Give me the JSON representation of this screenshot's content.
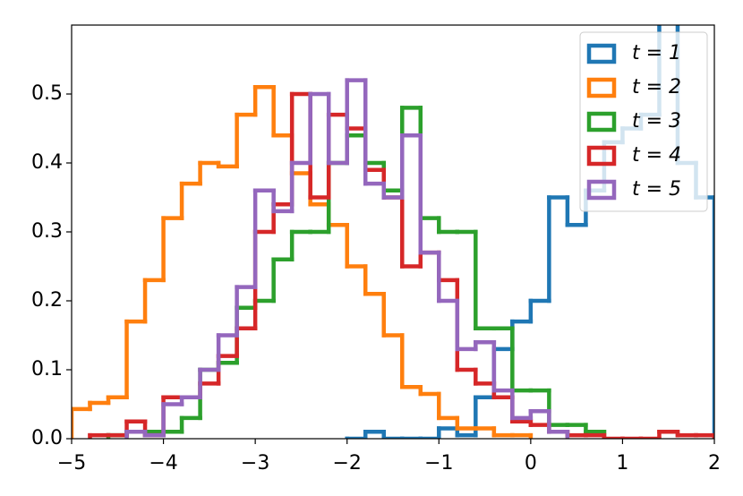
{
  "chart_data": {
    "type": "histogram",
    "xlim": [
      -5,
      2
    ],
    "ylim": [
      0,
      0.6
    ],
    "xticks": [
      {
        "value": -5,
        "label": "−5"
      },
      {
        "value": -4,
        "label": "−4"
      },
      {
        "value": -3,
        "label": "−3"
      },
      {
        "value": -2,
        "label": "−2"
      },
      {
        "value": -1,
        "label": "−1"
      },
      0,
      1,
      2
    ],
    "yticks": [
      {
        "value": 0,
        "label": "0.0"
      },
      0.1,
      0.2,
      0.3,
      0.4,
      0.5
    ],
    "legend": "upper right",
    "series": [
      {
        "name": "t = 1",
        "color": "#1f77b4",
        "bins": [
          -2,
          -1.8,
          -1.6,
          -1.4,
          -1.2,
          -1.0,
          -0.8,
          -0.6,
          -0.4,
          -0.2,
          0,
          0.2,
          0.4,
          0.6,
          0.8,
          1.0,
          1.2,
          1.4,
          1.6,
          1.8,
          2.0
        ],
        "values": [
          0,
          0.01,
          0,
          0,
          0,
          0.015,
          0.005,
          0.06,
          0.13,
          0.17,
          0.2,
          0.35,
          0.31,
          0.36,
          0.43,
          0.45,
          0.47,
          0.62,
          0.4,
          0.35
        ]
      },
      {
        "name": "t = 2",
        "color": "#ff7f0e",
        "bins": [
          -5,
          -4.8,
          -4.6,
          -4.4,
          -4.2,
          -4.0,
          -3.8,
          -3.6,
          -3.4,
          -3.2,
          -3.0,
          -2.8,
          -2.6,
          -2.4,
          -2.2,
          -2.0,
          -1.8,
          -1.6,
          -1.4,
          -1.2,
          -1.0,
          -0.8,
          -0.6,
          -0.4,
          -0.2,
          0
        ],
        "values": [
          0.043,
          0.052,
          0.06,
          0.17,
          0.23,
          0.32,
          0.37,
          0.4,
          0.395,
          0.47,
          0.51,
          0.44,
          0.385,
          0.34,
          0.31,
          0.25,
          0.21,
          0.15,
          0.075,
          0.065,
          0.03,
          0.015,
          0.015,
          0.005,
          0.005
        ]
      },
      {
        "name": "t = 3",
        "color": "#2ca02c",
        "bins": [
          -4.6,
          -4.4,
          -4.2,
          -4.0,
          -3.8,
          -3.6,
          -3.4,
          -3.2,
          -3.0,
          -2.8,
          -2.6,
          -2.4,
          -2.2,
          -2.0,
          -1.8,
          -1.6,
          -1.4,
          -1.2,
          -1.0,
          -0.8,
          -0.6,
          -0.4,
          -0.2,
          0,
          0.2,
          0.4,
          0.6,
          0.8
        ],
        "values": [
          0.005,
          0.01,
          0.01,
          0.01,
          0.03,
          0.1,
          0.11,
          0.19,
          0.2,
          0.26,
          0.3,
          0.3,
          0.4,
          0.44,
          0.4,
          0.36,
          0.48,
          0.32,
          0.3,
          0.3,
          0.16,
          0.16,
          0.07,
          0.07,
          0.02,
          0.02,
          0.01
        ]
      },
      {
        "name": "t = 4",
        "color": "#d62728",
        "bins": [
          -4.8,
          -4.6,
          -4.4,
          -4.2,
          -4.0,
          -3.8,
          -3.6,
          -3.4,
          -3.2,
          -3.0,
          -2.8,
          -2.6,
          -2.4,
          -2.2,
          -2.0,
          -1.8,
          -1.6,
          -1.4,
          -1.2,
          -1.0,
          -0.8,
          -0.6,
          -0.4,
          -0.2,
          0,
          0.2,
          0.4,
          0.6,
          0.8,
          1.0,
          1.2,
          1.4,
          1.6,
          1.8,
          2.0
        ],
        "values": [
          0.005,
          0.005,
          0.025,
          0.005,
          0.06,
          0.06,
          0.08,
          0.12,
          0.16,
          0.3,
          0.34,
          0.5,
          0.35,
          0.47,
          0.45,
          0.39,
          0.35,
          0.25,
          0.27,
          0.23,
          0.1,
          0.08,
          0.06,
          0.025,
          0.02,
          0.01,
          0.005,
          0.005,
          0,
          0,
          0,
          0.01,
          0.005,
          0.005
        ]
      },
      {
        "name": "t = 5",
        "color": "#9467bd",
        "bins": [
          -4.4,
          -4.2,
          -4.0,
          -3.8,
          -3.6,
          -3.4,
          -3.2,
          -3.0,
          -2.8,
          -2.6,
          -2.4,
          -2.2,
          -2.0,
          -1.8,
          -1.6,
          -1.4,
          -1.2,
          -1.0,
          -0.8,
          -0.6,
          -0.4,
          -0.2,
          0,
          0.2,
          0.4
        ],
        "values": [
          0.01,
          0.005,
          0.05,
          0.06,
          0.1,
          0.15,
          0.22,
          0.36,
          0.33,
          0.4,
          0.5,
          0.4,
          0.52,
          0.37,
          0.35,
          0.44,
          0.27,
          0.2,
          0.13,
          0.14,
          0.07,
          0.03,
          0.04,
          0.01
        ]
      }
    ]
  }
}
